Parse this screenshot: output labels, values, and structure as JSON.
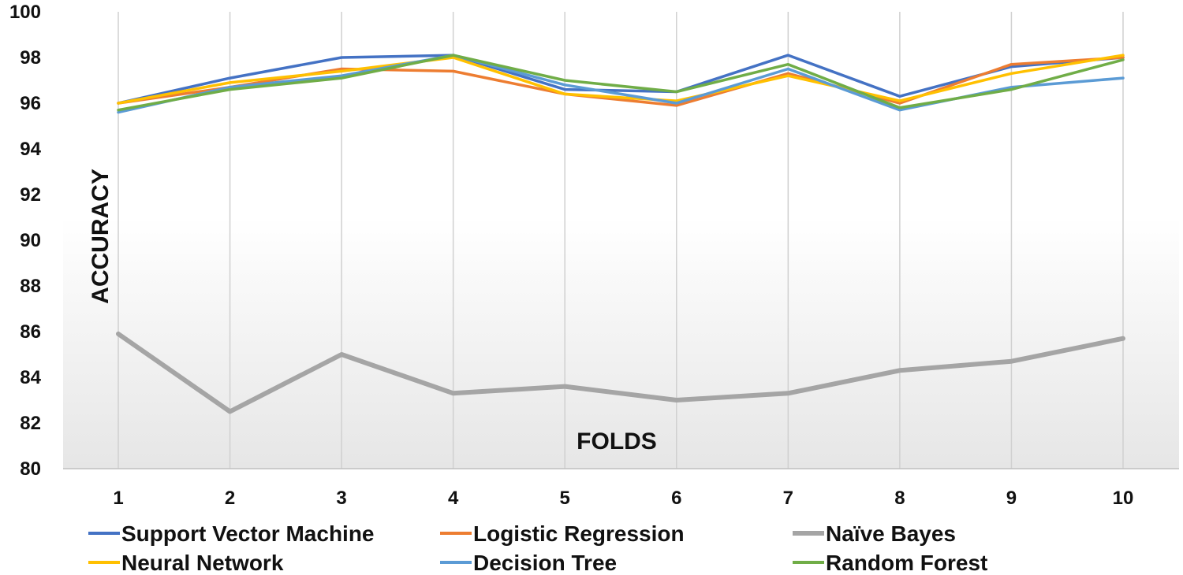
{
  "chart_data": {
    "type": "line",
    "title": "",
    "xlabel": "FOLDS",
    "ylabel": "ACCURACY",
    "categories": [
      "1",
      "2",
      "3",
      "4",
      "5",
      "6",
      "7",
      "8",
      "9",
      "10"
    ],
    "ylim": [
      80,
      100
    ],
    "yticks": [
      "80",
      "82",
      "84",
      "86",
      "88",
      "90",
      "92",
      "94",
      "96",
      "98",
      "100"
    ],
    "grid": "vertical",
    "legend_position": "bottom",
    "series": [
      {
        "name": "Support Vector Machine",
        "color": "#4472C4",
        "values": [
          96.0,
          97.1,
          98.0,
          98.1,
          96.6,
          96.5,
          98.1,
          96.3,
          97.6,
          98.0
        ]
      },
      {
        "name": "Logistic Regression",
        "color": "#ED7D31",
        "values": [
          96.0,
          96.7,
          97.5,
          97.4,
          96.4,
          95.9,
          97.3,
          96.0,
          97.7,
          98.0
        ]
      },
      {
        "name": "Naïve Bayes",
        "color": "#A5A5A5",
        "values": [
          85.9,
          82.5,
          85.0,
          83.3,
          83.6,
          83.0,
          83.3,
          84.3,
          84.7,
          85.7
        ]
      },
      {
        "name": "Neural Network",
        "color": "#FFC000",
        "values": [
          96.0,
          96.9,
          97.4,
          98.0,
          96.4,
          96.1,
          97.2,
          96.1,
          97.3,
          98.1
        ]
      },
      {
        "name": "Decision Tree",
        "color": "#5B9BD5",
        "values": [
          95.6,
          96.7,
          97.2,
          98.1,
          96.8,
          96.0,
          97.5,
          95.7,
          96.7,
          97.1
        ]
      },
      {
        "name": "Random Forest",
        "color": "#70AD47",
        "values": [
          95.7,
          96.6,
          97.1,
          98.1,
          97.0,
          96.5,
          97.7,
          95.8,
          96.6,
          97.9
        ]
      }
    ]
  }
}
